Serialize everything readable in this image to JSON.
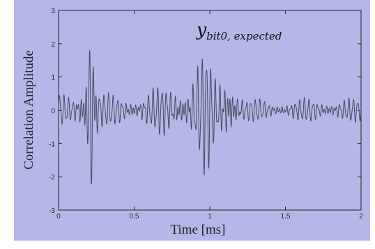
{
  "chart_data": {
    "type": "line",
    "title": "",
    "xlabel": "Time [ms]",
    "ylabel": "Correlation Amplitude",
    "xlim": [
      0,
      2
    ],
    "ylim": [
      -3,
      3
    ],
    "x_ticks": [
      "0",
      "0.5",
      "1",
      "1.5",
      "2"
    ],
    "y_ticks": [
      "3",
      "2",
      "1",
      "0",
      "-1",
      "-2",
      "-3"
    ],
    "grid": false,
    "annotation": {
      "main": "y",
      "sub": "bit0, expected"
    },
    "colors": {
      "background": "#b3b8e8",
      "line": "#4a4a5e",
      "axes": "#222222"
    },
    "series": [
      {
        "envelope": [
          [
            0.0,
            0.45
          ],
          [
            0.03,
            0.4
          ],
          [
            0.06,
            0.38
          ],
          [
            0.1,
            0.4
          ],
          [
            0.15,
            0.9
          ],
          [
            0.19,
            1.9
          ],
          [
            0.205,
            2.4
          ],
          [
            0.215,
            2.0
          ],
          [
            0.23,
            1.6
          ],
          [
            0.25,
            1.0
          ],
          [
            0.28,
            0.5
          ],
          [
            0.35,
            0.4
          ],
          [
            0.5,
            0.45
          ],
          [
            0.65,
            0.6
          ],
          [
            0.75,
            0.75
          ],
          [
            0.85,
            0.95
          ],
          [
            0.92,
            1.4
          ],
          [
            0.97,
            1.7
          ],
          [
            1.05,
            0.8
          ],
          [
            1.1,
            1.5
          ],
          [
            1.14,
            1.45
          ],
          [
            1.17,
            0.9
          ],
          [
            1.2,
            0.5
          ],
          [
            1.25,
            0.3
          ],
          [
            1.4,
            0.28
          ],
          [
            1.6,
            0.3
          ],
          [
            1.8,
            0.35
          ],
          [
            2.0,
            0.3
          ]
        ],
        "min": -2.2,
        "max": 2.4
      }
    ]
  }
}
